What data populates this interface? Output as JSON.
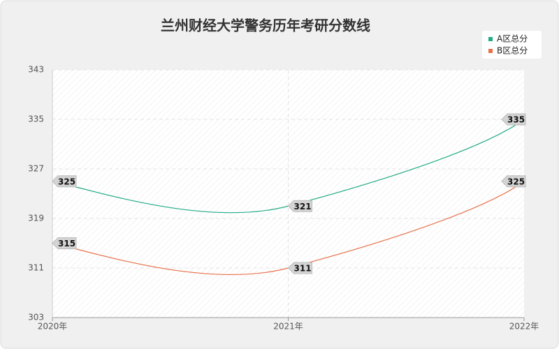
{
  "chart_data": {
    "type": "line",
    "title": "兰州财经大学警务历年考研分数线",
    "categories": [
      "2020年",
      "2021年",
      "2022年"
    ],
    "series": [
      {
        "name": "A区总分",
        "color": "#22ab85",
        "values": [
          325,
          321,
          335
        ]
      },
      {
        "name": "B区总分",
        "color": "#e8714a",
        "values": [
          315,
          311,
          325
        ]
      }
    ],
    "ylim": [
      303,
      343
    ],
    "yticks": [
      303,
      311,
      319,
      327,
      335,
      343
    ],
    "grid": true,
    "legend": "top-right",
    "smooth": true
  }
}
